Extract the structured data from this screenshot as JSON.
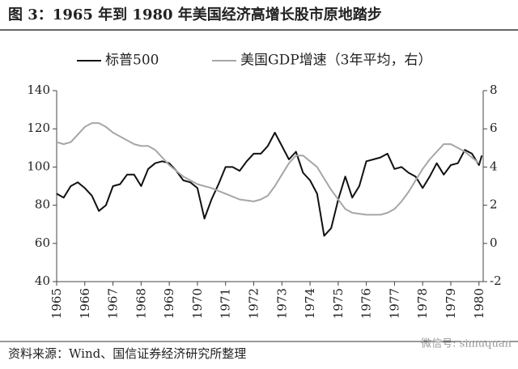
{
  "chart_data": {
    "type": "line",
    "title": "图 3：1965 年到 1980 年美国经济高增长股市原地踏步",
    "source": "资料来源：Wind、国信证券经济研究所整理",
    "watermark": "微信号: simuquan",
    "xlim": [
      1965,
      1980.15
    ],
    "xticks": [
      1965,
      1966,
      1967,
      1968,
      1969,
      1970,
      1971,
      1972,
      1973,
      1974,
      1975,
      1976,
      1977,
      1978,
      1979,
      1980
    ],
    "ylim": [
      40,
      140
    ],
    "yticks": [
      40,
      60,
      80,
      100,
      120,
      140
    ],
    "y2lim": [
      -2,
      8
    ],
    "y2ticks": [
      -2,
      0,
      2,
      4,
      6,
      8
    ],
    "series": [
      {
        "name": "标普500",
        "color": "#111111",
        "x": [
          1965,
          1965.25,
          1965.5,
          1965.75,
          1966,
          1966.25,
          1966.5,
          1966.75,
          1967,
          1967.25,
          1967.5,
          1967.75,
          1968,
          1968.25,
          1968.5,
          1968.75,
          1969,
          1969.25,
          1969.5,
          1969.75,
          1970,
          1970.25,
          1970.5,
          1970.75,
          1971,
          1971.25,
          1971.5,
          1971.75,
          1972,
          1972.25,
          1972.5,
          1972.75,
          1973,
          1973.25,
          1973.5,
          1973.75,
          1974,
          1974.25,
          1974.5,
          1974.75,
          1975,
          1975.25,
          1975.5,
          1975.75,
          1976,
          1976.25,
          1976.5,
          1976.75,
          1977,
          1977.25,
          1977.5,
          1977.75,
          1978,
          1978.25,
          1978.5,
          1978.75,
          1979,
          1979.25,
          1979.5,
          1979.75,
          1980,
          1980.1
        ],
        "values": [
          86,
          84,
          90,
          92,
          89,
          85,
          77,
          80,
          90,
          91,
          96,
          96,
          90,
          99,
          102,
          103,
          102,
          98,
          93,
          92,
          89,
          73,
          83,
          91,
          100,
          100,
          98,
          103,
          107,
          107,
          111,
          118,
          111,
          104,
          108,
          97,
          93,
          86,
          64,
          68,
          83,
          95,
          84,
          90,
          103,
          104,
          105,
          107,
          99,
          100,
          97,
          95,
          89,
          95,
          102,
          96,
          101,
          102,
          109,
          107,
          101,
          106
        ]
      },
      {
        "name": "美国GDP增速（3年平均，右）",
        "color": "#a6a6a6",
        "axis": "y2",
        "x": [
          1965,
          1965.25,
          1965.5,
          1965.75,
          1966,
          1966.25,
          1966.5,
          1966.75,
          1967,
          1967.25,
          1967.5,
          1967.75,
          1968,
          1968.25,
          1968.5,
          1968.75,
          1969,
          1969.25,
          1969.5,
          1969.75,
          1970,
          1970.5,
          1971,
          1971.5,
          1972,
          1972.25,
          1972.5,
          1972.75,
          1973,
          1973.25,
          1973.5,
          1973.75,
          1974,
          1974.25,
          1974.5,
          1974.75,
          1975,
          1975.25,
          1975.5,
          1976,
          1976.5,
          1976.75,
          1977,
          1977.25,
          1977.5,
          1977.75,
          1978,
          1978.25,
          1978.5,
          1978.75,
          1979,
          1979.25,
          1979.5,
          1979.75,
          1980
        ],
        "values": [
          5.3,
          5.2,
          5.3,
          5.7,
          6.1,
          6.3,
          6.3,
          6.1,
          5.8,
          5.6,
          5.4,
          5.2,
          5.1,
          5.1,
          4.9,
          4.5,
          4.1,
          3.8,
          3.5,
          3.3,
          3.1,
          2.9,
          2.6,
          2.3,
          2.2,
          2.3,
          2.5,
          3.0,
          3.6,
          4.2,
          4.6,
          4.6,
          4.3,
          4.0,
          3.4,
          2.8,
          2.3,
          1.8,
          1.6,
          1.5,
          1.5,
          1.6,
          1.8,
          2.2,
          2.7,
          3.3,
          3.9,
          4.4,
          4.8,
          5.2,
          5.2,
          5.0,
          4.8,
          4.5,
          4.2
        ]
      }
    ]
  }
}
